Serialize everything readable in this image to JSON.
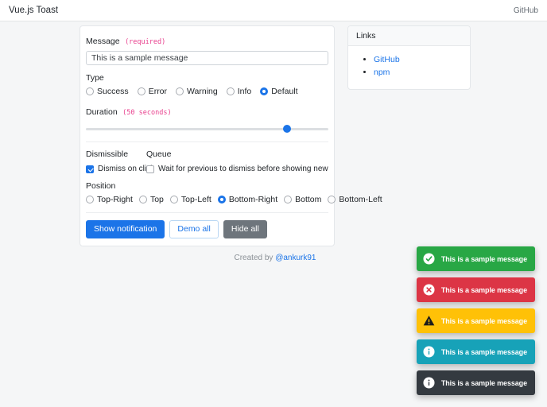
{
  "header": {
    "title": "Vue.js Toast",
    "github_label": "GitHub"
  },
  "form": {
    "message": {
      "label": "Message",
      "required_hint": "(required)",
      "value": "This is a sample message"
    },
    "type": {
      "label": "Type",
      "options": [
        {
          "label": "Success",
          "selected": false
        },
        {
          "label": "Error",
          "selected": false
        },
        {
          "label": "Warning",
          "selected": false
        },
        {
          "label": "Info",
          "selected": false
        },
        {
          "label": "Default",
          "selected": true
        }
      ]
    },
    "duration": {
      "label": "Duration",
      "hint": "(50 seconds)",
      "percent": 83
    },
    "dismissible": {
      "label": "Dismissible",
      "checkbox_label": "Dismiss on click",
      "checked": true
    },
    "queue": {
      "label": "Queue",
      "checkbox_label": "Wait for previous to dismiss before showing new",
      "checked": false
    },
    "position": {
      "label": "Position",
      "options": [
        {
          "label": "Top-Right",
          "selected": false
        },
        {
          "label": "Top",
          "selected": false
        },
        {
          "label": "Top-Left",
          "selected": false
        },
        {
          "label": "Bottom-Right",
          "selected": true
        },
        {
          "label": "Bottom",
          "selected": false
        },
        {
          "label": "Bottom-Left",
          "selected": false
        }
      ]
    },
    "buttons": {
      "show": "Show notification",
      "demo": "Demo all",
      "hide": "Hide all"
    }
  },
  "links_card": {
    "title": "Links",
    "items": [
      "GitHub",
      "npm"
    ]
  },
  "footer": {
    "created_by": "Created by",
    "author": "@ankurk91"
  },
  "toasts": [
    {
      "type": "success",
      "message": "This is a sample message",
      "color": "#28a745"
    },
    {
      "type": "error",
      "message": "This is a sample message",
      "color": "#dc3545"
    },
    {
      "type": "warning",
      "message": "This is a sample message",
      "color": "#ffc107"
    },
    {
      "type": "info",
      "message": "This is a sample message",
      "color": "#17a2b8"
    },
    {
      "type": "default",
      "message": "This is a sample message",
      "color": "#343a40"
    }
  ],
  "ui_colors": {
    "accent": "#1b74e8",
    "code_pink": "#e83e8c",
    "secondary": "#6e757c",
    "page_bg": "#f5f6f7"
  }
}
